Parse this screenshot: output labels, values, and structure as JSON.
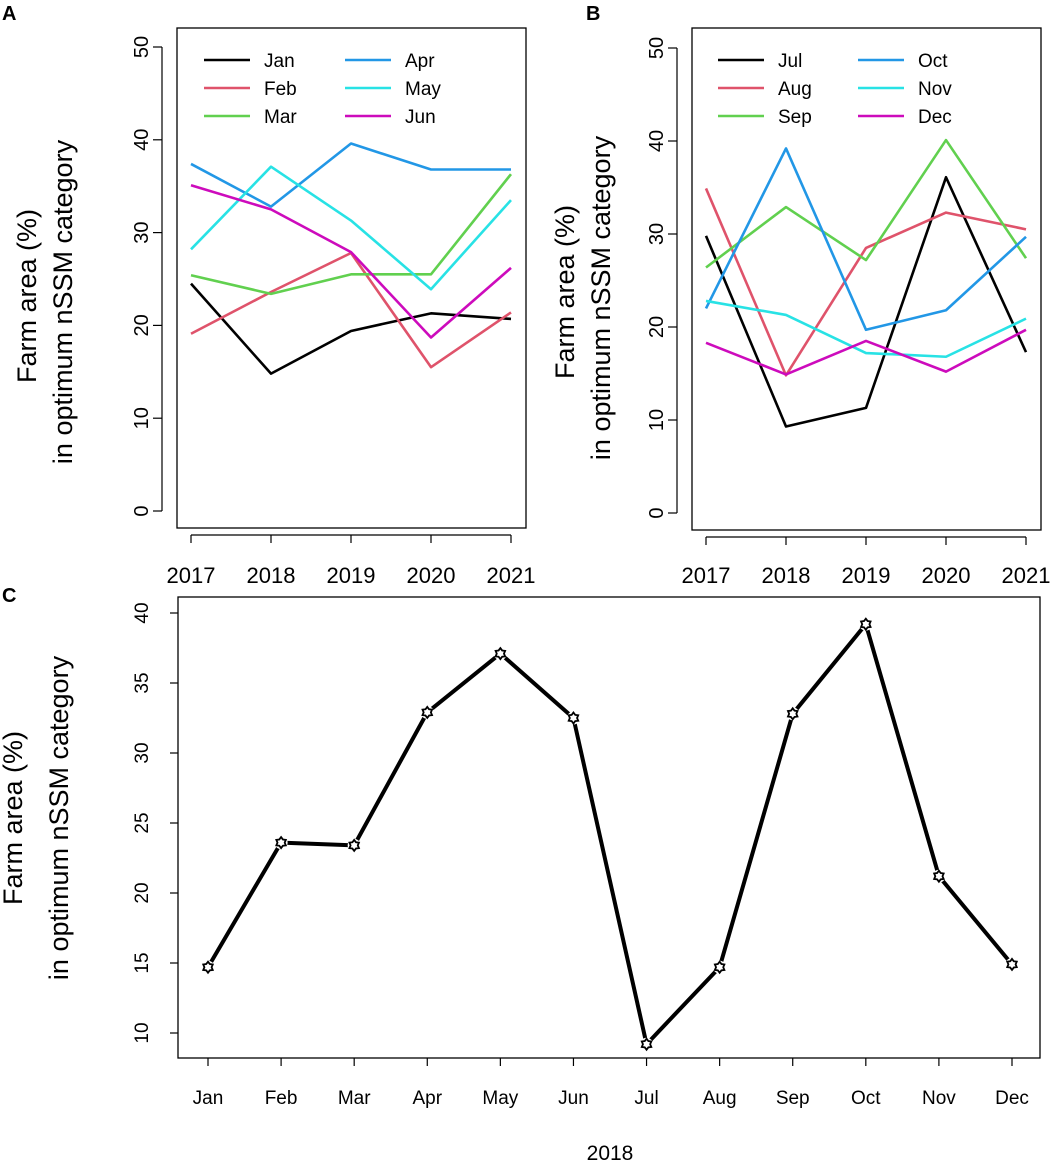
{
  "ylabel_line1": "Farm area (%)",
  "ylabel_line2": "in optimum nSSM category",
  "chart_data": [
    {
      "panel": "A",
      "type": "line",
      "x": [
        "2017",
        "2018",
        "2019",
        "2020",
        "2021"
      ],
      "ylim": [
        0,
        50
      ],
      "yticks": [
        0,
        10,
        20,
        30,
        40,
        50
      ],
      "legend_position": "top-left",
      "series": [
        {
          "name": "Jan",
          "color": "#000000",
          "values": [
            24.5,
            14.8,
            19.4,
            21.3,
            20.7
          ]
        },
        {
          "name": "Feb",
          "color": "#DF536B",
          "values": [
            19.1,
            23.6,
            27.8,
            15.5,
            21.4
          ]
        },
        {
          "name": "Mar",
          "color": "#61D04F",
          "values": [
            25.4,
            23.4,
            25.5,
            25.5,
            36.3
          ]
        },
        {
          "name": "Apr",
          "color": "#2297E6",
          "values": [
            37.4,
            32.8,
            39.6,
            36.8,
            36.8
          ]
        },
        {
          "name": "May",
          "color": "#28E2E5",
          "values": [
            28.2,
            37.1,
            31.3,
            23.9,
            33.5
          ]
        },
        {
          "name": "Jun",
          "color": "#CD0BBC",
          "values": [
            35.1,
            32.5,
            27.9,
            18.7,
            26.2
          ]
        }
      ]
    },
    {
      "panel": "B",
      "type": "line",
      "x": [
        "2017",
        "2018",
        "2019",
        "2020",
        "2021"
      ],
      "ylim": [
        0,
        50
      ],
      "yticks": [
        0,
        10,
        20,
        30,
        40,
        50
      ],
      "legend_position": "top-left",
      "series": [
        {
          "name": "Jul",
          "color": "#000000",
          "values": [
            29.8,
            9.3,
            11.3,
            36.1,
            17.3
          ]
        },
        {
          "name": "Aug",
          "color": "#DF536B",
          "values": [
            34.9,
            14.8,
            28.5,
            32.3,
            30.5
          ]
        },
        {
          "name": "Sep",
          "color": "#61D04F",
          "values": [
            26.4,
            32.9,
            27.2,
            40.1,
            27.4
          ]
        },
        {
          "name": "Oct",
          "color": "#2297E6",
          "values": [
            22.0,
            39.2,
            19.7,
            21.8,
            29.7
          ]
        },
        {
          "name": "Nov",
          "color": "#28E2E5",
          "values": [
            22.8,
            21.3,
            17.2,
            16.8,
            20.9
          ]
        },
        {
          "name": "Dec",
          "color": "#CD0BBC",
          "values": [
            18.3,
            14.9,
            18.5,
            15.2,
            19.7
          ]
        }
      ]
    },
    {
      "panel": "C",
      "type": "line",
      "categories": [
        "Jan",
        "Feb",
        "Mar",
        "Apr",
        "May",
        "Jun",
        "Jul",
        "Aug",
        "Sep",
        "Oct",
        "Nov",
        "Dec"
      ],
      "values": [
        14.7,
        23.6,
        23.4,
        32.9,
        37.1,
        32.5,
        9.2,
        14.7,
        32.8,
        39.2,
        21.2,
        14.9
      ],
      "xlabel": "2018",
      "ylim": [
        9.5,
        40
      ],
      "yticks": [
        10,
        15,
        20,
        25,
        30,
        35,
        40
      ],
      "color": "#000000",
      "marker": "open-star"
    }
  ]
}
